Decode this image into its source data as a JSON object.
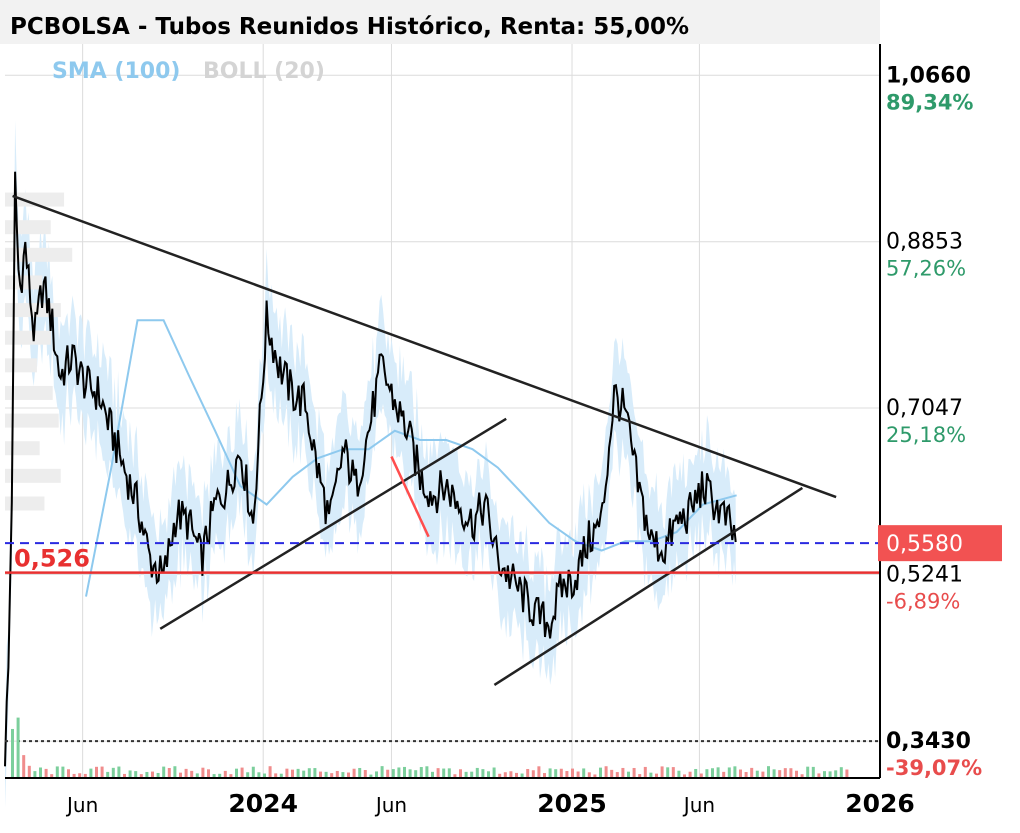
{
  "chart_data": {
    "type": "line",
    "title": "PCBOLSA - Tubos Reunidos Histórico, Renta: 55,00%",
    "legend": [
      {
        "label": "SMA (100)",
        "color": "#8ec9ee"
      },
      {
        "label": "BOLL (20)",
        "color": "#d4d4d4"
      }
    ],
    "x_tick_labels": [
      {
        "label": "Jun",
        "date": "2023-06-01",
        "style": "month"
      },
      {
        "label": "2024",
        "date": "2024-01-01",
        "style": "year"
      },
      {
        "label": "Jun",
        "date": "2024-06-01",
        "style": "month"
      },
      {
        "label": "2025",
        "date": "2025-01-01",
        "style": "year"
      },
      {
        "label": "Jun",
        "date": "2025-06-01",
        "style": "month"
      },
      {
        "label": "2026",
        "date": "2026-01-01",
        "style": "year"
      }
    ],
    "xlim": [
      "2023-03-01",
      "2026-01-01"
    ],
    "ylim": [
      0.303,
      1.1
    ],
    "y_levels": [
      {
        "value": 1.066,
        "value_label": "1,0660",
        "pct_label": "89,34%",
        "pct_color": "#2e9a6a",
        "bold": true
      },
      {
        "value": 0.8853,
        "value_label": "0,8853",
        "pct_label": "57,26%",
        "pct_color": "#2e9a6a",
        "bold": false
      },
      {
        "value": 0.7047,
        "value_label": "0,7047",
        "pct_label": "25,18%",
        "pct_color": "#2e9a6a",
        "bold": false
      },
      {
        "value": 0.5241,
        "value_label": "0,5241",
        "pct_label": "-6,89%",
        "pct_color": "#e84c4c",
        "bold": false
      },
      {
        "value": 0.343,
        "value_label": "0,3430",
        "pct_label": "-39,07%",
        "pct_color": "#e84c4c",
        "bold": true
      }
    ],
    "current_price": {
      "value": 0.558,
      "label": "0,5580",
      "color": "#f25252"
    },
    "support_line": {
      "value": 0.526,
      "label": "0,526",
      "color": "#e83030"
    },
    "purchase_level": {
      "value": 0.343
    },
    "price_series": {
      "name": "",
      "x": [
        "2023-03-01",
        "2023-03-05",
        "2023-03-10",
        "2023-03-13",
        "2023-03-18",
        "2023-03-25",
        "2023-04-05",
        "2023-04-15",
        "2023-04-25",
        "2023-05-05",
        "2023-05-20",
        "2023-06-05",
        "2023-06-20",
        "2023-07-05",
        "2023-07-20",
        "2023-08-05",
        "2023-08-20",
        "2023-09-05",
        "2023-09-20",
        "2023-10-05",
        "2023-10-20",
        "2023-11-05",
        "2023-11-20",
        "2023-12-05",
        "2023-12-20",
        "2024-01-05",
        "2024-01-20",
        "2024-02-05",
        "2024-02-20",
        "2024-03-05",
        "2024-03-20",
        "2024-04-05",
        "2024-04-20",
        "2024-05-05",
        "2024-05-20",
        "2024-06-05",
        "2024-06-20",
        "2024-07-05",
        "2024-07-20",
        "2024-08-05",
        "2024-08-20",
        "2024-09-05",
        "2024-09-20",
        "2024-10-05",
        "2024-10-20",
        "2024-11-05",
        "2024-11-20",
        "2024-12-05",
        "2024-12-20",
        "2025-01-05",
        "2025-01-20",
        "2025-02-05",
        "2025-02-20",
        "2025-03-05",
        "2025-03-20",
        "2025-04-05",
        "2025-04-20",
        "2025-05-05",
        "2025-05-20",
        "2025-06-05",
        "2025-06-20",
        "2025-07-05",
        "2025-07-15"
      ],
      "values": [
        0.33,
        0.42,
        0.66,
        0.95,
        0.83,
        0.88,
        0.78,
        0.84,
        0.8,
        0.74,
        0.76,
        0.73,
        0.72,
        0.68,
        0.64,
        0.6,
        0.54,
        0.52,
        0.59,
        0.58,
        0.54,
        0.6,
        0.62,
        0.66,
        0.58,
        0.8,
        0.75,
        0.72,
        0.71,
        0.64,
        0.58,
        0.66,
        0.62,
        0.68,
        0.75,
        0.71,
        0.68,
        0.63,
        0.61,
        0.62,
        0.6,
        0.58,
        0.6,
        0.54,
        0.52,
        0.5,
        0.48,
        0.47,
        0.51,
        0.52,
        0.56,
        0.58,
        0.72,
        0.7,
        0.62,
        0.56,
        0.55,
        0.58,
        0.59,
        0.62,
        0.6,
        0.58,
        0.558
      ]
    },
    "sma_series": {
      "name": "",
      "x": [
        "2023-06-05",
        "2023-07-05",
        "2023-08-05",
        "2023-09-05",
        "2023-10-05",
        "2023-11-05",
        "2023-12-05",
        "2024-01-05",
        "2024-02-05",
        "2024-03-05",
        "2024-04-05",
        "2024-05-05",
        "2024-06-05",
        "2024-07-05",
        "2024-08-05",
        "2024-09-05",
        "2024-10-05",
        "2024-11-05",
        "2024-12-05",
        "2025-01-05",
        "2025-02-05",
        "2025-03-05",
        "2025-04-05",
        "2025-05-05",
        "2025-06-05",
        "2025-07-15"
      ],
      "values": [
        0.5,
        0.64,
        0.8,
        0.8,
        0.74,
        0.68,
        0.62,
        0.6,
        0.63,
        0.65,
        0.66,
        0.66,
        0.68,
        0.67,
        0.67,
        0.66,
        0.64,
        0.61,
        0.58,
        0.56,
        0.55,
        0.56,
        0.56,
        0.57,
        0.6,
        0.61
      ]
    }
  },
  "annotations": {
    "trend_lines": [
      {
        "from": [
          "2023-03-10",
          0.935
        ],
        "to": [
          "2025-11-10",
          0.608
        ],
        "color": "#222222"
      },
      {
        "from": [
          "2023-09-01",
          0.465
        ],
        "to": [
          "2024-10-15",
          0.693
        ],
        "color": "#222222"
      },
      {
        "from": [
          "2024-10-01",
          0.404
        ],
        "to": [
          "2025-10-01",
          0.618
        ],
        "color": "#222222"
      },
      {
        "from": [
          "2024-06-01",
          0.652
        ],
        "to": [
          "2024-07-15",
          0.565
        ],
        "color": "#ff4d4d"
      }
    ]
  }
}
